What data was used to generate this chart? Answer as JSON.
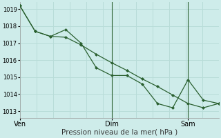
{
  "title": "",
  "xlabel": "Pression niveau de la mer( hPa )",
  "ylabel": "",
  "background_color": "#ceecea",
  "grid_color": "#b8dcd8",
  "line_color": "#2a6030",
  "marker_color": "#2a6030",
  "x_ticks_labels": [
    "Ven",
    "Dim",
    "Sam"
  ],
  "ylim": [
    1012.6,
    1019.4
  ],
  "yticks": [
    1013,
    1014,
    1015,
    1016,
    1017,
    1018,
    1019
  ],
  "series1_x": [
    0,
    6,
    12,
    18,
    24,
    30,
    36,
    42,
    48,
    54,
    60,
    66,
    72,
    78
  ],
  "series1_y": [
    1019.2,
    1017.7,
    1017.4,
    1017.8,
    1017.0,
    1015.55,
    1015.1,
    1015.1,
    1014.6,
    1013.45,
    1013.2,
    1014.85,
    1013.65,
    1013.45
  ],
  "series2_x": [
    0,
    6,
    12,
    18,
    24,
    30,
    36,
    42,
    48,
    54,
    60,
    66,
    72,
    78
  ],
  "series2_y": [
    1019.2,
    1017.7,
    1017.4,
    1017.35,
    1016.9,
    1016.35,
    1015.85,
    1015.4,
    1014.9,
    1014.45,
    1013.95,
    1013.45,
    1013.2,
    1013.45
  ],
  "vline_x1": 36,
  "vline_x2": 66,
  "vline_color": "#2a6030",
  "xtick_ven": 0,
  "xtick_dim": 36,
  "xtick_sam": 66,
  "xlim_min": 0,
  "xlim_max": 78,
  "figsize": [
    3.2,
    2.0
  ],
  "dpi": 100,
  "xlabel_fontsize": 7.5,
  "ytick_fontsize": 6,
  "xtick_fontsize": 7
}
